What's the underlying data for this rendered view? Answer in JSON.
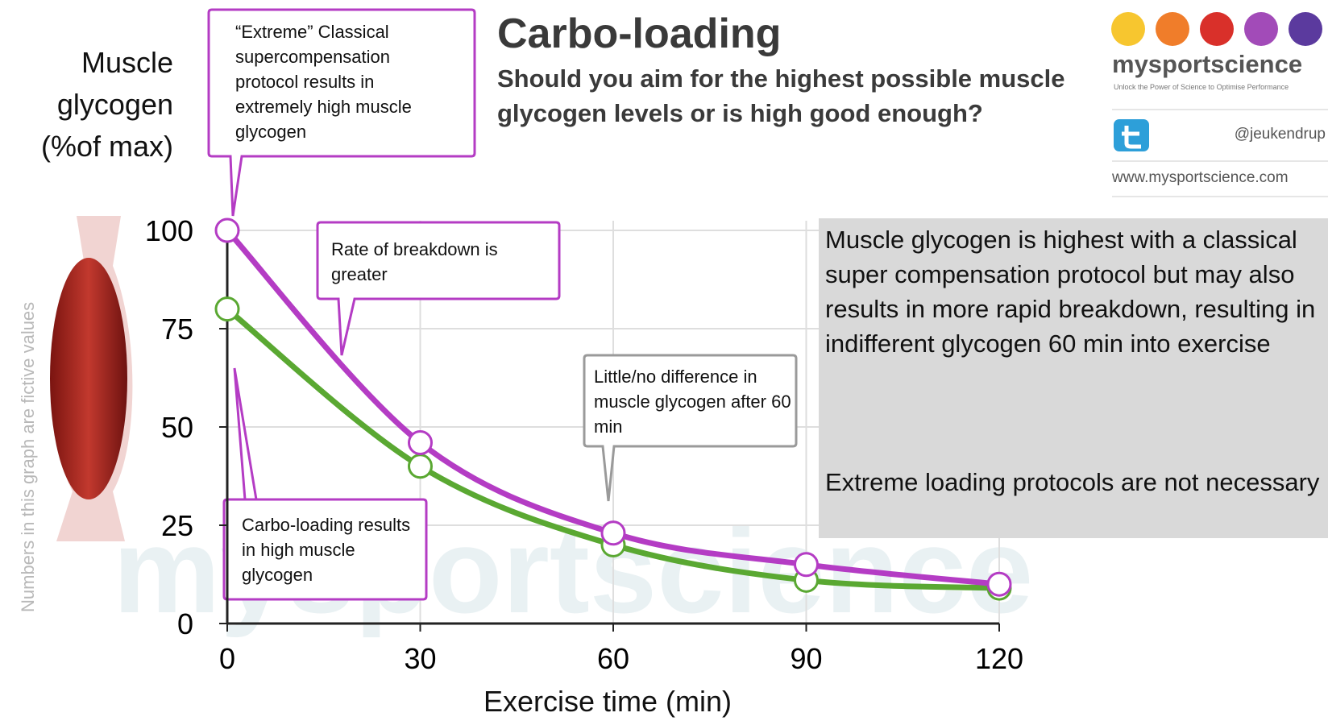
{
  "chart_data": {
    "type": "line",
    "title": "Carbo-loading",
    "subtitle": "Should you aim for the highest possible muscle glycogen levels or is high good enough?",
    "y_label": "Muscle glycogen (%of max)",
    "x_label": "Exercise time (min)",
    "side_note": "Numbers in this graph are fictive values",
    "x": [
      0,
      30,
      60,
      90,
      120
    ],
    "xlim": [
      0,
      120
    ],
    "xticks": [
      0,
      30,
      60,
      90,
      120
    ],
    "ylim": [
      0,
      100
    ],
    "yticks": [
      0,
      25,
      50,
      75,
      100
    ],
    "grid": true,
    "series": [
      {
        "color": "#b43cc4",
        "values": [
          100,
          46,
          23,
          15,
          10
        ]
      },
      {
        "color": "#5aa832",
        "values": [
          80,
          40,
          20,
          11,
          9
        ]
      }
    ],
    "annotations": [
      "“Extreme” Classical supercompensation protocol results in extremely high muscle glycogen",
      "Rate of breakdown is greater",
      "Little/no difference in muscle glycogen after 60 min",
      "Carbo-loading results in high muscle glycogen"
    ],
    "info_box": [
      "Muscle glycogen is highest with a classical super compensation protocol but may also results in more rapid breakdown, resulting in indifferent glycogen 60 min into exercise",
      "Extreme loading protocols are not necessary"
    ]
  },
  "branding": {
    "logo": "mysportscience",
    "tagline": "Unlock the Power of Science to Optimise Performance",
    "twitter": "@jeukendrup",
    "website": "www.mysportscience.com",
    "watermark": "mysportscience"
  }
}
